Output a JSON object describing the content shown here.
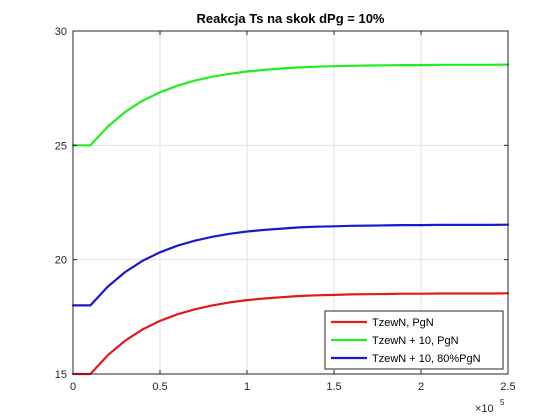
{
  "chart_data": {
    "type": "line",
    "title": "Reakcja Ts na skok dPg = 10%",
    "xlabel": "",
    "ylabel": "",
    "xlim": [
      0,
      250000
    ],
    "ylim": [
      15,
      30
    ],
    "x_exponent_label": {
      "base": "×10",
      "exponent": "5"
    },
    "x_ticks": [
      {
        "value": 0,
        "label": "0"
      },
      {
        "value": 50000,
        "label": "0.5"
      },
      {
        "value": 100000,
        "label": "1"
      },
      {
        "value": 150000,
        "label": "1.5"
      },
      {
        "value": 200000,
        "label": "2"
      },
      {
        "value": 250000,
        "label": "2.5"
      }
    ],
    "y_ticks": [
      {
        "value": 15,
        "label": "15"
      },
      {
        "value": 20,
        "label": "20"
      },
      {
        "value": 25,
        "label": "25"
      },
      {
        "value": 30,
        "label": "30"
      }
    ],
    "grid": true,
    "legend_position": "bottom-right",
    "series": [
      {
        "name": "TzewN, PgN",
        "color": "#e31a1c",
        "x": [
          0,
          10000,
          20000,
          30000,
          40000,
          50000,
          60000,
          70000,
          80000,
          90000,
          100000,
          110000,
          120000,
          130000,
          140000,
          150000,
          160000,
          170000,
          180000,
          190000,
          200000,
          210000,
          220000,
          230000,
          240000,
          250000
        ],
        "values": [
          15.0,
          15.0,
          15.82,
          16.46,
          16.95,
          17.32,
          17.61,
          17.83,
          18.0,
          18.13,
          18.23,
          18.3,
          18.36,
          18.41,
          18.44,
          18.46,
          18.48,
          18.49,
          18.5,
          18.51,
          18.51,
          18.52,
          18.52,
          18.52,
          18.52,
          18.53
        ]
      },
      {
        "name": "TzewN + 10, PgN",
        "color": "#22ee22",
        "x": [
          0,
          10000,
          20000,
          30000,
          40000,
          50000,
          60000,
          70000,
          80000,
          90000,
          100000,
          110000,
          120000,
          130000,
          140000,
          150000,
          160000,
          170000,
          180000,
          190000,
          200000,
          210000,
          220000,
          230000,
          240000,
          250000
        ],
        "values": [
          25.0,
          25.0,
          25.82,
          26.46,
          26.95,
          27.32,
          27.61,
          27.83,
          28.0,
          28.13,
          28.23,
          28.3,
          28.36,
          28.41,
          28.44,
          28.46,
          28.48,
          28.49,
          28.5,
          28.51,
          28.51,
          28.52,
          28.52,
          28.52,
          28.52,
          28.53
        ]
      },
      {
        "name": "TzewN + 10, 80%PgN",
        "color": "#1a1acc",
        "x": [
          0,
          10000,
          20000,
          30000,
          40000,
          50000,
          60000,
          70000,
          80000,
          90000,
          100000,
          110000,
          120000,
          130000,
          140000,
          150000,
          160000,
          170000,
          180000,
          190000,
          200000,
          210000,
          220000,
          230000,
          240000,
          250000
        ],
        "values": [
          18.0,
          18.0,
          18.82,
          19.46,
          19.95,
          20.32,
          20.61,
          20.83,
          21.0,
          21.13,
          21.23,
          21.3,
          21.36,
          21.41,
          21.44,
          21.46,
          21.48,
          21.49,
          21.5,
          21.51,
          21.51,
          21.52,
          21.52,
          21.52,
          21.52,
          21.53
        ]
      }
    ]
  }
}
